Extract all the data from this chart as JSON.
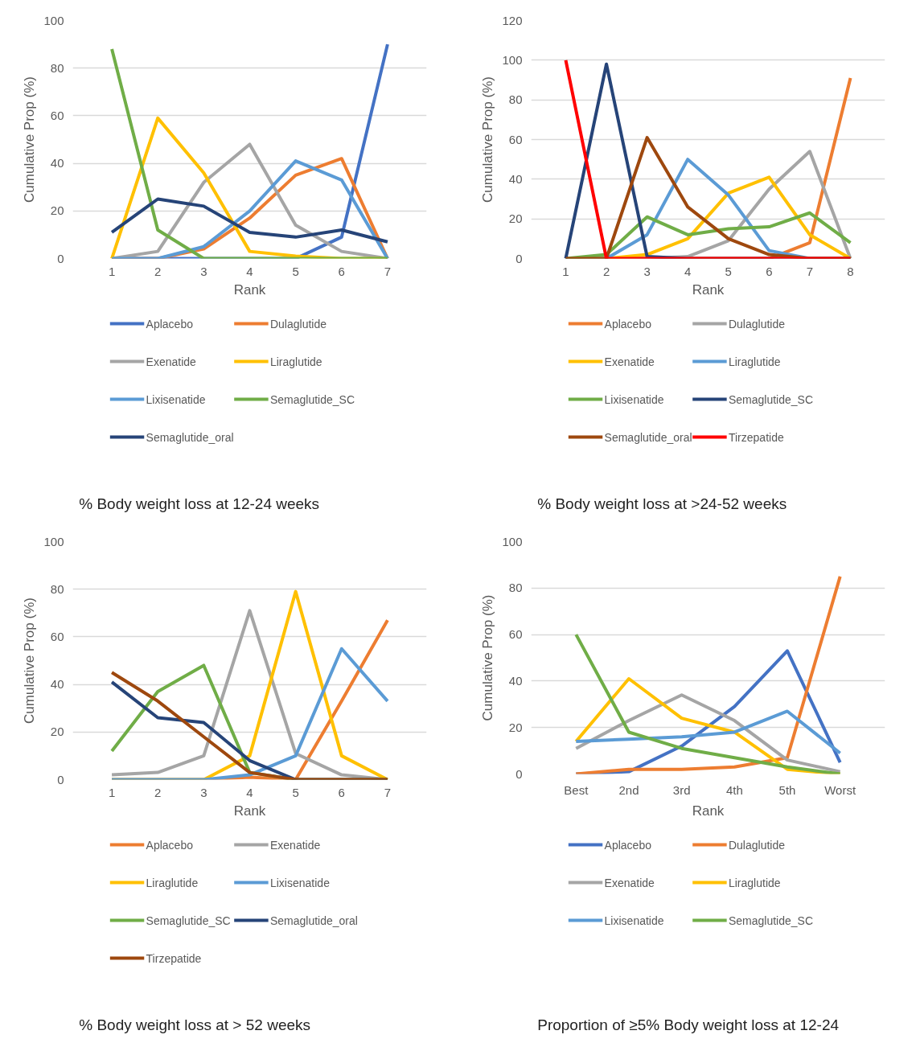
{
  "chart_data": [
    {
      "type": "line",
      "title": "% Body weight loss at 12-24 weeks",
      "xlabel": "Rank",
      "ylabel": "Cumulative Prop (%)",
      "categories": [
        "1",
        "2",
        "3",
        "4",
        "5",
        "6",
        "7"
      ],
      "ylim": [
        0,
        100
      ],
      "yticks": [
        0,
        20,
        40,
        60,
        80,
        100
      ],
      "grid": "y",
      "legend": "bottom",
      "series": [
        {
          "name": "Aplacebo",
          "color": "#4472c4",
          "values": [
            0,
            0,
            0,
            0,
            0,
            9,
            90
          ]
        },
        {
          "name": "Dulaglutide",
          "color": "#ed7d31",
          "values": [
            0,
            0,
            4,
            17,
            35,
            42,
            0
          ]
        },
        {
          "name": "Exenatide",
          "color": "#a5a5a5",
          "values": [
            0,
            3,
            32,
            48,
            14,
            3,
            0
          ]
        },
        {
          "name": "Liraglutide",
          "color": "#ffc000",
          "values": [
            0,
            59,
            36,
            3,
            1,
            0,
            0
          ]
        },
        {
          "name": "Lixisenatide",
          "color": "#5b9bd5",
          "values": [
            0,
            0,
            5,
            20,
            41,
            33,
            0
          ]
        },
        {
          "name": "Semaglutide_SC",
          "color": "#70ad47",
          "values": [
            88,
            12,
            0,
            0,
            0,
            0,
            0
          ]
        },
        {
          "name": "Semaglutide_oral",
          "color": "#264478",
          "values": [
            11,
            25,
            22,
            11,
            9,
            12,
            7
          ]
        }
      ]
    },
    {
      "type": "line",
      "title": "% Body weight loss at >24-52 weeks",
      "xlabel": "Rank",
      "ylabel": "Cumulative Prop (%)",
      "categories": [
        "1",
        "2",
        "3",
        "4",
        "5",
        "6",
        "7",
        "8"
      ],
      "ylim": [
        0,
        120
      ],
      "yticks": [
        0,
        20,
        40,
        60,
        80,
        100,
        120
      ],
      "grid": "y",
      "legend": "bottom",
      "series": [
        {
          "name": "Aplacebo",
          "color": "#ed7d31",
          "values": [
            0,
            0,
            0,
            0,
            0,
            0,
            8,
            91
          ]
        },
        {
          "name": "Dulaglutide",
          "color": "#a5a5a5",
          "values": [
            0,
            0,
            0,
            1,
            9,
            35,
            54,
            0
          ]
        },
        {
          "name": "Exenatide",
          "color": "#ffc000",
          "values": [
            0,
            0,
            2,
            10,
            33,
            41,
            12,
            0
          ]
        },
        {
          "name": "Liraglutide",
          "color": "#5b9bd5",
          "values": [
            0,
            0,
            12,
            50,
            32,
            4,
            0,
            0
          ]
        },
        {
          "name": "Lixisenatide",
          "color": "#70ad47",
          "values": [
            0,
            2,
            21,
            12,
            15,
            16,
            23,
            8
          ]
        },
        {
          "name": "Semaglutide_SC",
          "color": "#264478",
          "values": [
            0,
            98,
            1,
            0,
            0,
            0,
            0,
            0
          ]
        },
        {
          "name": "Semaglutide_oral",
          "color": "#9e480e",
          "values": [
            0,
            0,
            61,
            26,
            10,
            2,
            0,
            0
          ]
        },
        {
          "name": "Tirzepatide",
          "color": "#ff0000",
          "values": [
            100,
            0,
            0,
            0,
            0,
            0,
            0,
            0
          ]
        }
      ]
    },
    {
      "type": "line",
      "title": "% Body weight loss at > 52 weeks",
      "xlabel": "Rank",
      "ylabel": "Cumulative Prop (%)",
      "categories": [
        "1",
        "2",
        "3",
        "4",
        "5",
        "6",
        "7"
      ],
      "ylim": [
        0,
        100
      ],
      "yticks": [
        0,
        20,
        40,
        60,
        80,
        100
      ],
      "grid": "y",
      "legend": "bottom",
      "series": [
        {
          "name": "Aplacebo",
          "color": "#ed7d31",
          "values": [
            0,
            0,
            0,
            1,
            0,
            33,
            67
          ]
        },
        {
          "name": "Exenatide",
          "color": "#a5a5a5",
          "values": [
            2,
            3,
            10,
            71,
            11,
            2,
            0
          ]
        },
        {
          "name": "Liraglutide",
          "color": "#ffc000",
          "values": [
            0,
            0,
            0,
            10,
            79,
            10,
            0
          ]
        },
        {
          "name": "Lixisenatide",
          "color": "#5b9bd5",
          "values": [
            0,
            0,
            0,
            2,
            10,
            55,
            33
          ]
        },
        {
          "name": "Semaglutide_SC",
          "color": "#70ad47",
          "values": [
            12,
            37,
            48,
            3,
            0,
            0,
            0
          ]
        },
        {
          "name": "Semaglutide_oral",
          "color": "#264478",
          "values": [
            41,
            26,
            24,
            8,
            0,
            0,
            0
          ]
        },
        {
          "name": "Tirzepatide",
          "color": "#9e480e",
          "values": [
            45,
            33,
            18,
            3,
            0,
            0,
            0
          ]
        }
      ]
    },
    {
      "type": "line",
      "title": "Proportion of ≥5% Body weight loss at 12-24",
      "xlabel": "Rank",
      "ylabel": "Cumulative Prop (%)",
      "categories": [
        "Best",
        "2nd",
        "3rd",
        "4th",
        "5th",
        "Worst"
      ],
      "ylim": [
        0,
        100
      ],
      "yticks": [
        0,
        20,
        40,
        60,
        80,
        100
      ],
      "grid": "y",
      "legend": "bottom",
      "series": [
        {
          "name": "Aplacebo",
          "color": "#4472c4",
          "values": [
            0,
            1,
            12,
            29,
            53,
            5
          ]
        },
        {
          "name": "Dulaglutide",
          "color": "#ed7d31",
          "values": [
            0,
            2,
            2,
            3,
            7,
            85
          ]
        },
        {
          "name": "Exenatide",
          "color": "#a5a5a5",
          "values": [
            11,
            23,
            34,
            23,
            6,
            1
          ]
        },
        {
          "name": "Liraglutide",
          "color": "#ffc000",
          "values": [
            14,
            41,
            24,
            18,
            2,
            0
          ]
        },
        {
          "name": "Lixisenatide",
          "color": "#5b9bd5",
          "values": [
            14,
            15,
            16,
            18,
            27,
            9
          ]
        },
        {
          "name": "Semaglutide_SC",
          "color": "#70ad47",
          "values": [
            60,
            18,
            11,
            7,
            3,
            0
          ]
        }
      ]
    }
  ]
}
